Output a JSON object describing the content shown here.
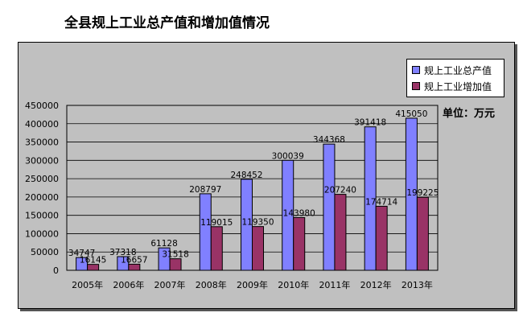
{
  "title": "全县规上工业总产值和增加值情况",
  "unit_label": "单位：万元",
  "colors": {
    "plot_bg": "#c0c0c0",
    "series1": "#8080ff",
    "series2": "#993366",
    "grid": "#000000"
  },
  "chart_data": {
    "type": "bar",
    "title": "全县规上工业总产值和增加值情况",
    "categories": [
      "2005年",
      "2006年",
      "2007年",
      "2008年",
      "2009年",
      "2010年",
      "2011年",
      "2012年",
      "2013年"
    ],
    "series": [
      {
        "name": "规上工业总产值",
        "values": [
          34747,
          37318,
          61128,
          208797,
          248452,
          300039,
          344368,
          391418,
          415050
        ]
      },
      {
        "name": "规上工业增加值",
        "values": [
          16145,
          16657,
          31518,
          119015,
          119350,
          143980,
          207240,
          174714,
          199225
        ]
      }
    ],
    "ylim": [
      0,
      450000
    ],
    "yticks": [
      0,
      50000,
      100000,
      150000,
      200000,
      250000,
      300000,
      350000,
      400000,
      450000
    ],
    "legend": "top-right",
    "grid": true
  }
}
